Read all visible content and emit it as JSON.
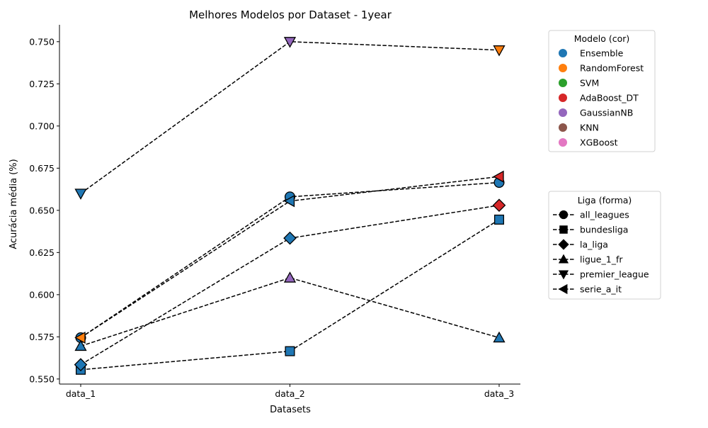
{
  "chart_data": {
    "type": "line",
    "title": "Melhores Modelos por Dataset - 1year",
    "xlabel": "Datasets",
    "ylabel": "Acurácia média (%)",
    "categories": [
      "data_1",
      "data_2",
      "data_3"
    ],
    "ylim": [
      0.547,
      0.76
    ],
    "yticks": [
      0.55,
      0.575,
      0.6,
      0.625,
      0.65,
      0.675,
      0.7,
      0.725,
      0.75
    ],
    "ytick_labels": [
      "0.550",
      "0.575",
      "0.600",
      "0.625",
      "0.650",
      "0.675",
      "0.700",
      "0.725",
      "0.750"
    ],
    "grid": false,
    "line_style": "dashed",
    "line_color": "#000000",
    "models": [
      {
        "name": "Ensemble",
        "color": "#1f77b4"
      },
      {
        "name": "RandomForest",
        "color": "#ff7f0e"
      },
      {
        "name": "SVM",
        "color": "#2ca02c"
      },
      {
        "name": "AdaBoost_DT",
        "color": "#d62728"
      },
      {
        "name": "GaussianNB",
        "color": "#9467bd"
      },
      {
        "name": "KNN",
        "color": "#8c564b"
      },
      {
        "name": "XGBoost",
        "color": "#e377c2"
      }
    ],
    "leagues": [
      {
        "name": "all_leagues",
        "marker": "circle"
      },
      {
        "name": "bundesliga",
        "marker": "square"
      },
      {
        "name": "la_liga",
        "marker": "diamond"
      },
      {
        "name": "ligue_1_fr",
        "marker": "triangle-up"
      },
      {
        "name": "premier_league",
        "marker": "triangle-down"
      },
      {
        "name": "serie_a_it",
        "marker": "triangle-left"
      }
    ],
    "series": [
      {
        "league": "all_leagues",
        "values": [
          0.5745,
          0.658,
          0.6665
        ],
        "models": [
          "Ensemble",
          "Ensemble",
          "Ensemble"
        ]
      },
      {
        "league": "bundesliga",
        "values": [
          0.5555,
          0.5665,
          0.6445
        ],
        "models": [
          "Ensemble",
          "Ensemble",
          "Ensemble"
        ]
      },
      {
        "league": "la_liga",
        "values": [
          0.5585,
          0.6335,
          0.653
        ],
        "models": [
          "Ensemble",
          "Ensemble",
          "AdaBoost_DT"
        ]
      },
      {
        "league": "ligue_1_fr",
        "values": [
          0.5695,
          0.61,
          0.5745
        ],
        "models": [
          "Ensemble",
          "GaussianNB",
          "Ensemble"
        ]
      },
      {
        "league": "premier_league",
        "values": [
          0.66,
          0.75,
          0.745
        ],
        "models": [
          "Ensemble",
          "GaussianNB",
          "RandomForest"
        ]
      },
      {
        "league": "serie_a_it",
        "values": [
          0.5745,
          0.6555,
          0.67
        ],
        "models": [
          "RandomForest",
          "Ensemble",
          "AdaBoost_DT"
        ]
      }
    ],
    "legend_models_title": "Modelo (cor)",
    "legend_leagues_title": "Liga (forma)",
    "legend_placement": "outside right"
  }
}
